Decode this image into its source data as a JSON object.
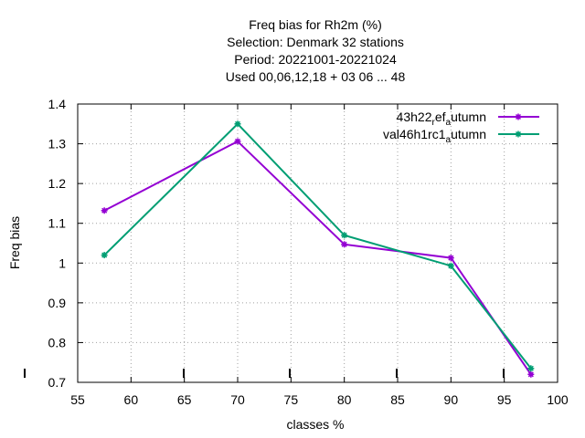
{
  "chart_data": {
    "type": "line",
    "title_lines": [
      "Freq bias  for Rh2m (%)",
      "Selection: Denmark     32 stations",
      "Period: 20221001-20221024",
      "Used  00,06,12,18  + 03 06 ... 48"
    ],
    "xlabel": "classes %",
    "ylabel": "Freq bias",
    "xlim": [
      55,
      100
    ],
    "ylim": [
      0.7,
      1.4
    ],
    "xticks": [
      55,
      60,
      65,
      70,
      75,
      80,
      85,
      90,
      95,
      100
    ],
    "yticks": [
      0.7,
      0.8,
      0.9,
      1.0,
      1.1,
      1.2,
      1.3,
      1.4
    ],
    "ytick_labels": [
      "0.7",
      "0.8",
      "0.9",
      "1",
      "1.1",
      "1.2",
      "1.3",
      "1.4"
    ],
    "grid": true,
    "legend_position": "top-right",
    "series": [
      {
        "legend": {
          "main": "43h22",
          "sub": "r",
          "mid": "ef",
          "sub2": "a",
          "end": "utumn"
        },
        "color": "#9400d3",
        "x": [
          57.5,
          70,
          80,
          90,
          97.5
        ],
        "y": [
          1.132,
          1.306,
          1.047,
          1.013,
          0.72
        ]
      },
      {
        "legend": {
          "main": "val46h1rc1",
          "sub": "a",
          "end": "utumn"
        },
        "color": "#009e73",
        "x": [
          57.5,
          70,
          80,
          90,
          97.5
        ],
        "y": [
          1.02,
          1.35,
          1.07,
          0.993,
          0.735
        ]
      }
    ]
  }
}
